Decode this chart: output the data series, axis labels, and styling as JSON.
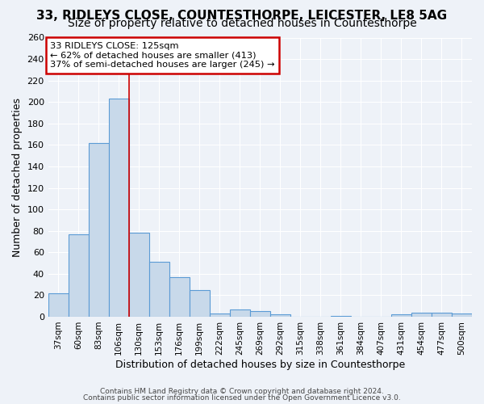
{
  "title": "33, RIDLEYS CLOSE, COUNTESTHORPE, LEICESTER, LE8 5AG",
  "subtitle": "Size of property relative to detached houses in Countesthorpe",
  "xlabel": "Distribution of detached houses by size in Countesthorpe",
  "ylabel": "Number of detached properties",
  "bin_labels": [
    "37sqm",
    "60sqm",
    "83sqm",
    "106sqm",
    "130sqm",
    "153sqm",
    "176sqm",
    "199sqm",
    "222sqm",
    "245sqm",
    "269sqm",
    "292sqm",
    "315sqm",
    "338sqm",
    "361sqm",
    "384sqm",
    "407sqm",
    "431sqm",
    "454sqm",
    "477sqm",
    "500sqm"
  ],
  "bin_values": [
    22,
    77,
    162,
    203,
    78,
    51,
    37,
    25,
    3,
    7,
    5,
    2,
    0,
    0,
    1,
    0,
    0,
    2,
    4,
    4,
    3
  ],
  "bar_color": "#c8d9ea",
  "bar_edge_color": "#5b9bd5",
  "vline_color": "#cc0000",
  "vline_pos": 3.5,
  "annotation_box_text": "33 RIDLEYS CLOSE: 125sqm\n← 62% of detached houses are smaller (413)\n37% of semi-detached houses are larger (245) →",
  "annotation_box_fill": "white",
  "ylim": [
    0,
    260
  ],
  "yticks": [
    0,
    20,
    40,
    60,
    80,
    100,
    120,
    140,
    160,
    180,
    200,
    220,
    240,
    260
  ],
  "footer_line1": "Contains HM Land Registry data © Crown copyright and database right 2024.",
  "footer_line2": "Contains public sector information licensed under the Open Government Licence v3.0.",
  "bg_color": "#eef2f8",
  "title_fontsize": 11,
  "subtitle_fontsize": 10
}
